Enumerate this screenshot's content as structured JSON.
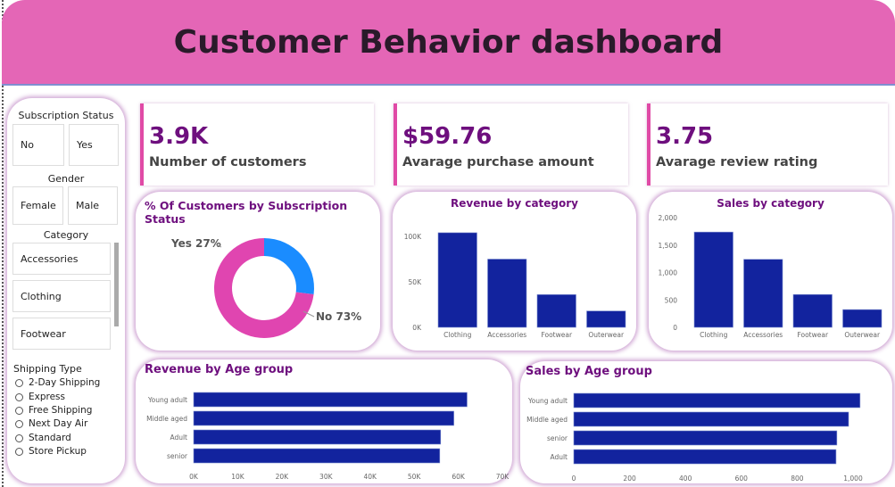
{
  "header": {
    "title": "Customer Behavior dashboard"
  },
  "slicers": {
    "subscription": {
      "title": "Subscription Status",
      "options": [
        "No",
        "Yes"
      ]
    },
    "gender": {
      "title": "Gender",
      "options": [
        "Female",
        "Male"
      ]
    },
    "category": {
      "title": "Category",
      "options": [
        "Accessories",
        "Clothing",
        "Footwear"
      ]
    },
    "shipping": {
      "title": "Shipping Type",
      "options": [
        "2-Day Shipping",
        "Express",
        "Free Shipping",
        "Next Day Air",
        "Standard",
        "Store Pickup"
      ]
    }
  },
  "cards": [
    {
      "value": "3.9K",
      "label": "Number of customers"
    },
    {
      "value": "$59.76",
      "label": "Avarage purchase amount"
    },
    {
      "value": "3.75",
      "label": "Avarage review rating"
    }
  ],
  "colors": {
    "bar": "#12239e",
    "yes": "#1a8cff",
    "no": "#e045b0",
    "title": "#6e0f7e",
    "header": "#e466b6"
  },
  "chart_data": [
    {
      "type": "pie",
      "title": "% Of Customers by Subscription Status",
      "categories": [
        "Yes",
        "No"
      ],
      "values": [
        27,
        73
      ],
      "labels": [
        "Yes 27%",
        "No 73%"
      ]
    },
    {
      "type": "bar",
      "title": "Revenue by category",
      "categories": [
        "Clothing",
        "Accessories",
        "Footwear",
        "Outerwear"
      ],
      "values": [
        104000,
        75000,
        36000,
        18000
      ],
      "ylim": [
        0,
        100000
      ],
      "yticks": [
        "0K",
        "50K",
        "100K"
      ]
    },
    {
      "type": "bar",
      "title": "Sales by category",
      "categories": [
        "Clothing",
        "Accessories",
        "Footwear",
        "Outerwear"
      ],
      "values": [
        1737,
        1240,
        599,
        324
      ],
      "ylim": [
        0,
        2000
      ],
      "yticks": [
        "0",
        "500",
        "1,000",
        "1,500",
        "2,000"
      ]
    },
    {
      "type": "bar",
      "orientation": "horizontal",
      "title": "Revenue by Age group",
      "categories": [
        "Young adult",
        "Middle aged",
        "Adult",
        "senior"
      ],
      "values": [
        62000,
        59000,
        56000,
        55800
      ],
      "xlim": [
        0,
        70000
      ],
      "xticks": [
        "0K",
        "10K",
        "20K",
        "30K",
        "40K",
        "50K",
        "60K",
        "70K"
      ]
    },
    {
      "type": "bar",
      "orientation": "horizontal",
      "title": "Sales by Age group",
      "categories": [
        "Young adult",
        "Middle aged",
        "senior",
        "Adult"
      ],
      "values": [
        1025,
        984,
        942,
        939
      ],
      "xlim": [
        0,
        1000
      ],
      "xticks": [
        "0",
        "200",
        "400",
        "600",
        "800",
        "1,000"
      ]
    }
  ]
}
